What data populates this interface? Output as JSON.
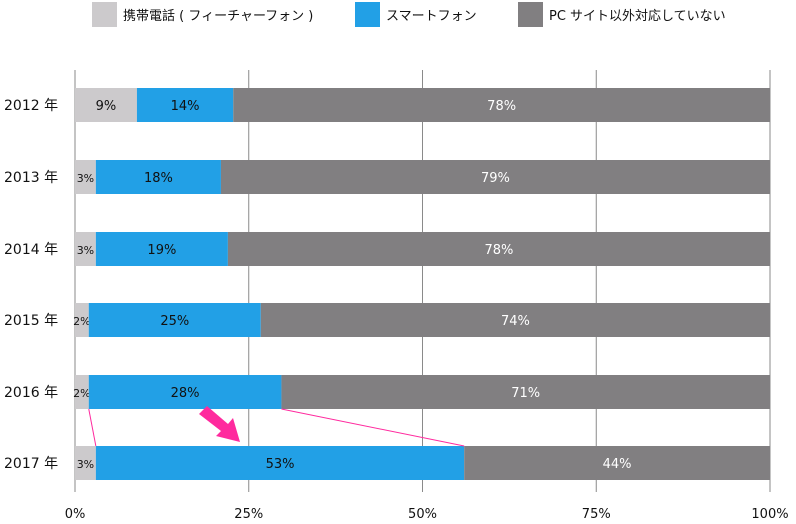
{
  "chart_data": {
    "type": "bar",
    "orientation": "horizontal",
    "stacked": true,
    "categories": [
      "2012 年",
      "2013 年",
      "2014 年",
      "2015 年",
      "2016 年",
      "2017 年"
    ],
    "series": [
      {
        "name": "携帯電話 ( フィーチャーフォン )",
        "color": "#cccacc",
        "label_color": "#111111",
        "values": [
          9,
          3,
          3,
          2,
          2,
          3
        ]
      },
      {
        "name": "スマートフォン",
        "color": "#22a0e6",
        "label_color": "#111111",
        "values": [
          14,
          18,
          19,
          25,
          28,
          53
        ]
      },
      {
        "name": "PC サイト以外対応していない",
        "color": "#817f81",
        "label_color": "#ffffff",
        "values": [
          78,
          79,
          78,
          74,
          71,
          44
        ]
      }
    ],
    "value_suffix": "%",
    "xlim": [
      0,
      100
    ],
    "xticks": [
      "0%",
      "25%",
      "50%",
      "75%",
      "100%"
    ],
    "grid": true,
    "legend": "top",
    "annotation": {
      "type": "arrow-and-connectors",
      "from": "2016 年",
      "to": "2017 年",
      "color": "#ff2a9e"
    }
  }
}
